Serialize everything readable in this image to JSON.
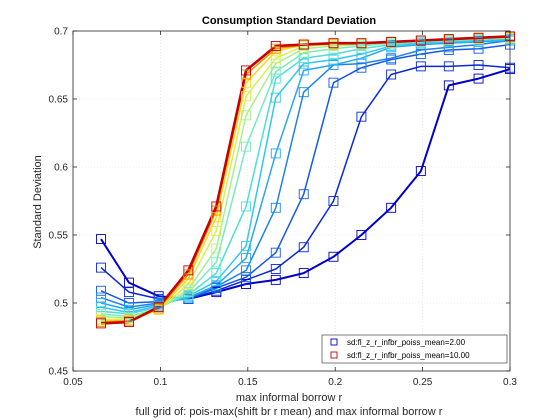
{
  "chart_data": {
    "type": "line",
    "title": "Consumption Standard Deviation",
    "xlabel": "max informal borrow r",
    "ylabel": "Standard Deviation",
    "footnote": "full grid of: pois-max(shift br r mean) and max informal borrow r",
    "xlim": [
      0.05,
      0.3
    ],
    "ylim": [
      0.45,
      0.7
    ],
    "xticks": [
      "0.05",
      "0.1",
      "0.15",
      "0.2",
      "0.25",
      "0.3"
    ],
    "yticks": [
      "0.45",
      "0.5",
      "0.55",
      "0.6",
      "0.65",
      "0.7"
    ],
    "grid": true,
    "x": [
      0.066,
      0.082,
      0.099,
      0.116,
      0.132,
      0.149,
      0.166,
      0.182,
      0.199,
      0.215,
      0.232,
      0.249,
      0.265,
      0.282,
      0.3
    ],
    "series": [
      {
        "name": "sd:fl_z_r_infbr_poiss_mean=2.00",
        "color": "#0000c8",
        "values": [
          0.547,
          0.515,
          0.505,
          0.503,
          0.508,
          0.514,
          0.517,
          0.522,
          0.534,
          0.55,
          0.57,
          0.597,
          0.66,
          0.665,
          0.672
        ]
      },
      {
        "color": "#0a28d8",
        "values": [
          0.526,
          0.508,
          0.503,
          0.503,
          0.509,
          0.517,
          0.525,
          0.541,
          0.575,
          0.637,
          0.668,
          0.674,
          0.674,
          0.675,
          0.673
        ]
      },
      {
        "color": "#145ae6",
        "values": [
          0.509,
          0.5,
          0.501,
          0.503,
          0.511,
          0.519,
          0.537,
          0.58,
          0.662,
          0.673,
          0.679,
          0.683,
          0.686,
          0.687,
          0.69
        ]
      },
      {
        "color": "#1e82ec",
        "values": [
          0.504,
          0.497,
          0.5,
          0.504,
          0.512,
          0.524,
          0.57,
          0.655,
          0.675,
          0.676,
          0.68,
          0.686,
          0.688,
          0.69,
          0.693
        ]
      },
      {
        "color": "#28a8f0",
        "values": [
          0.5,
          0.495,
          0.499,
          0.504,
          0.513,
          0.533,
          0.61,
          0.671,
          0.675,
          0.68,
          0.688,
          0.69,
          0.691,
          0.692,
          0.693
        ]
      },
      {
        "color": "#32c8ee",
        "values": [
          0.497,
          0.493,
          0.498,
          0.505,
          0.516,
          0.542,
          0.651,
          0.676,
          0.679,
          0.683,
          0.689,
          0.691,
          0.692,
          0.693,
          0.694
        ]
      },
      {
        "color": "#50dcdc",
        "values": [
          0.494,
          0.492,
          0.497,
          0.506,
          0.522,
          0.571,
          0.665,
          0.68,
          0.683,
          0.687,
          0.69,
          0.692,
          0.693,
          0.694,
          0.695
        ]
      },
      {
        "color": "#78ecbe",
        "values": [
          0.492,
          0.49,
          0.496,
          0.508,
          0.53,
          0.615,
          0.67,
          0.684,
          0.687,
          0.689,
          0.691,
          0.692,
          0.693,
          0.694,
          0.695
        ]
      },
      {
        "color": "#a8f090",
        "values": [
          0.49,
          0.489,
          0.496,
          0.51,
          0.54,
          0.638,
          0.676,
          0.687,
          0.689,
          0.69,
          0.692,
          0.693,
          0.694,
          0.694,
          0.695
        ]
      },
      {
        "color": "#d8f050",
        "values": [
          0.488,
          0.488,
          0.495,
          0.514,
          0.553,
          0.652,
          0.68,
          0.689,
          0.69,
          0.691,
          0.692,
          0.693,
          0.694,
          0.695,
          0.695
        ]
      },
      {
        "color": "#f8d820",
        "values": [
          0.487,
          0.487,
          0.495,
          0.518,
          0.563,
          0.662,
          0.685,
          0.69,
          0.69,
          0.691,
          0.692,
          0.693,
          0.694,
          0.695,
          0.695
        ]
      },
      {
        "color": "#f89000",
        "values": [
          0.486,
          0.487,
          0.496,
          0.521,
          0.568,
          0.668,
          0.687,
          0.69,
          0.691,
          0.691,
          0.692,
          0.693,
          0.694,
          0.695,
          0.696
        ]
      },
      {
        "name": "sd:fl_z_r_infbr_poiss_mean=10.00",
        "color": "#c80000",
        "values": [
          0.485,
          0.486,
          0.497,
          0.524,
          0.571,
          0.671,
          0.689,
          0.69,
          0.691,
          0.691,
          0.692,
          0.693,
          0.694,
          0.695,
          0.696
        ]
      }
    ],
    "legend": {
      "placement": "bottom-right",
      "entries": [
        {
          "label": "sd:fl_z_r_infbr_poiss_mean=2.00",
          "color": "#0000c8"
        },
        {
          "label": "sd:fl_z_r_infbr_poiss_mean=10.00",
          "color": "#c80000"
        }
      ]
    }
  }
}
